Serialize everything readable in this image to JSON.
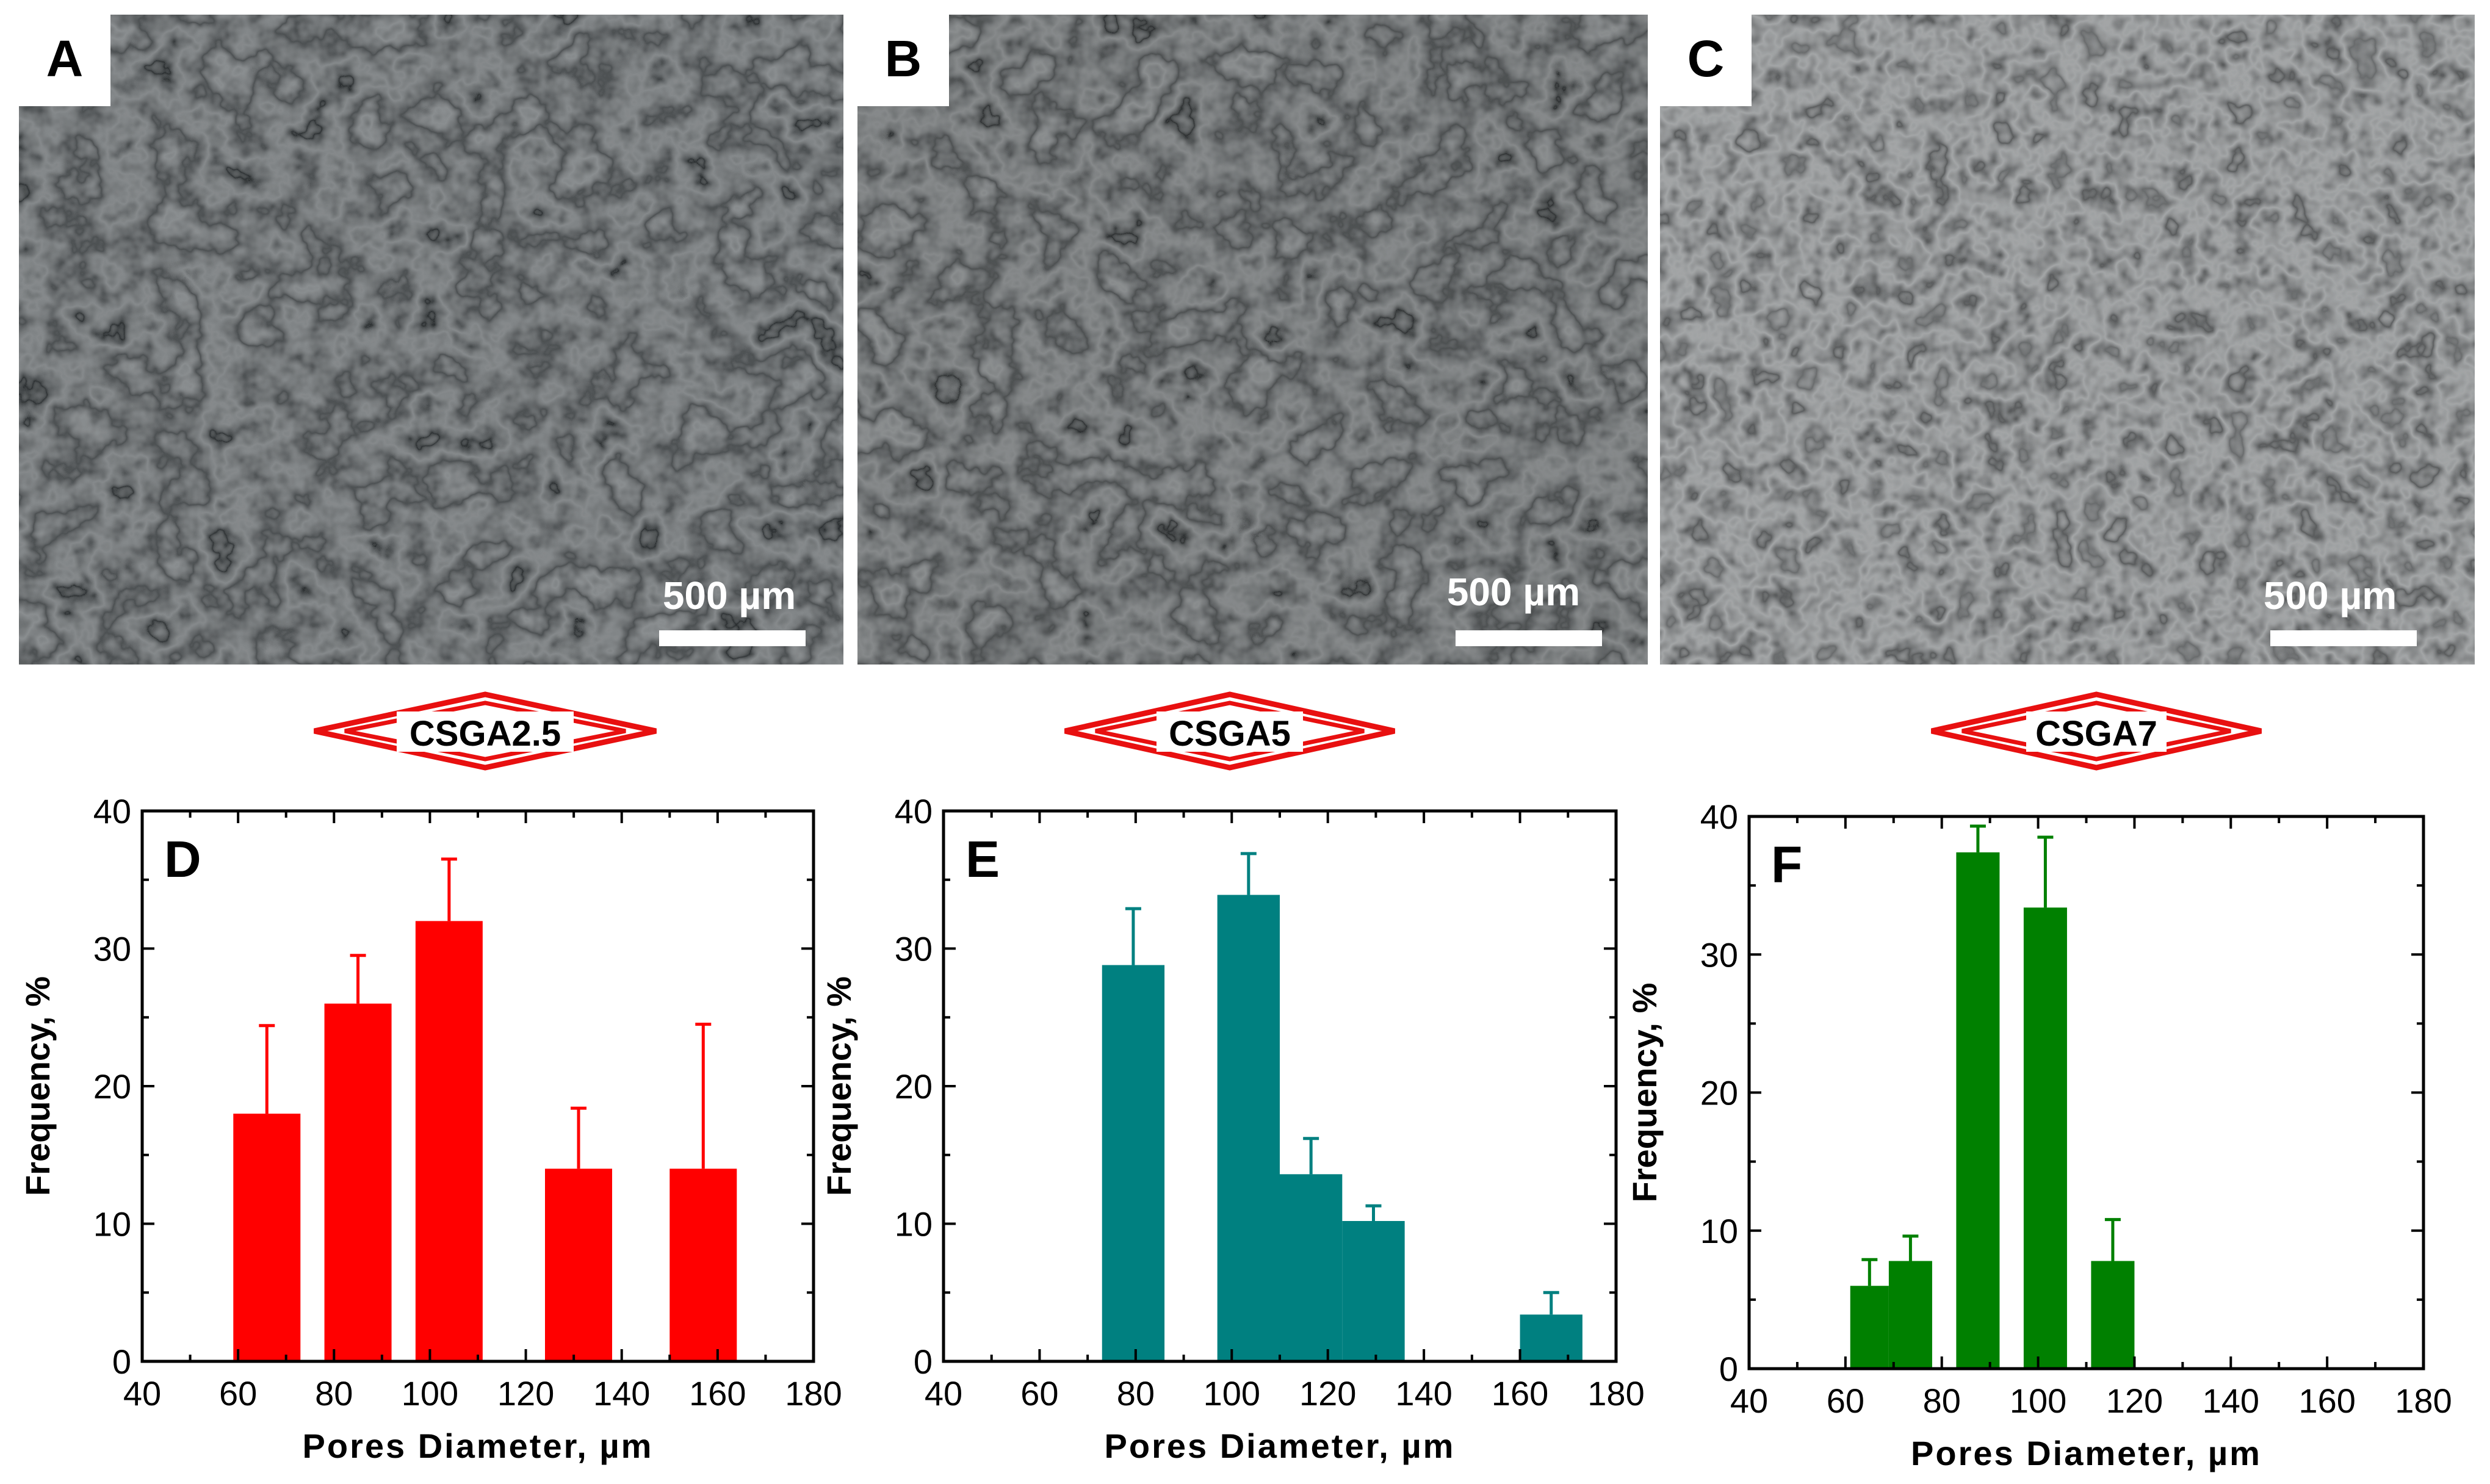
{
  "panels": {
    "A": {
      "letter": "A",
      "scale_bar": "500 µm",
      "color": "#444a4d"
    },
    "B": {
      "letter": "B",
      "scale_bar": "500 µm",
      "color": "#454a4c"
    },
    "C": {
      "letter": "C",
      "scale_bar": "500 µm",
      "color": "#5a5e60"
    }
  },
  "sample_labels": [
    "CSGA2.5",
    "CSGA5",
    "CSGA7"
  ],
  "colors": {
    "red": "#ff0000",
    "teal": "#008080",
    "green": "#008000",
    "diamond": "#e81010",
    "axis": "#000000"
  },
  "chart_data": [
    {
      "type": "bar",
      "panel_letter": "D",
      "sample": "CSGA2.5",
      "xlabel": "Pores Diameter, µm",
      "ylabel": "Frequency, %",
      "xlim": [
        40,
        180
      ],
      "ylim": [
        0,
        40
      ],
      "xticks": [
        40,
        60,
        80,
        100,
        120,
        140,
        160,
        180
      ],
      "yticks": [
        0,
        10,
        20,
        30,
        40
      ],
      "color": "#ff0000",
      "bars": [
        {
          "x0": 59,
          "x1": 73,
          "value": 18,
          "error": 6.4
        },
        {
          "x0": 78,
          "x1": 92,
          "value": 26,
          "error": 3.5
        },
        {
          "x0": 97,
          "x1": 111,
          "value": 32,
          "error": 4.5
        },
        {
          "x0": 124,
          "x1": 138,
          "value": 14,
          "error": 4.4
        },
        {
          "x0": 150,
          "x1": 164,
          "value": 14,
          "error": 10.5
        }
      ]
    },
    {
      "type": "bar",
      "panel_letter": "E",
      "sample": "CSGA5",
      "xlabel": "Pores Diameter, µm",
      "ylabel": "Frequency, %",
      "xlim": [
        40,
        180
      ],
      "ylim": [
        0,
        40
      ],
      "xticks": [
        40,
        60,
        80,
        100,
        120,
        140,
        160,
        180
      ],
      "yticks": [
        0,
        10,
        20,
        30,
        40
      ],
      "color": "#008080",
      "bars": [
        {
          "x0": 73,
          "x1": 86,
          "value": 28.8,
          "error": 4.1
        },
        {
          "x0": 97,
          "x1": 110,
          "value": 33.9,
          "error": 3
        },
        {
          "x0": 110,
          "x1": 123,
          "value": 13.6,
          "error": 2.6
        },
        {
          "x0": 123,
          "x1": 136,
          "value": 10.2,
          "error": 1.1
        },
        {
          "x0": 160,
          "x1": 173,
          "value": 3.4,
          "error": 1.6
        }
      ]
    },
    {
      "type": "bar",
      "panel_letter": "F",
      "sample": "CSGA7",
      "xlabel": "Pores Diameter, µm",
      "ylabel": "Frequency, %",
      "xlim": [
        40,
        180
      ],
      "ylim": [
        0,
        40
      ],
      "xticks": [
        40,
        60,
        80,
        100,
        120,
        140,
        160,
        180
      ],
      "yticks": [
        0,
        10,
        20,
        30,
        40
      ],
      "color": "#008000",
      "bars": [
        {
          "x0": 61,
          "x1": 69,
          "value": 6,
          "error": 1.9
        },
        {
          "x0": 69,
          "x1": 78,
          "value": 7.8,
          "error": 1.8
        },
        {
          "x0": 83,
          "x1": 92,
          "value": 37.4,
          "error": 1.9
        },
        {
          "x0": 97,
          "x1": 106,
          "value": 33.4,
          "error": 5.1
        },
        {
          "x0": 111,
          "x1": 120,
          "value": 7.8,
          "error": 3
        }
      ]
    }
  ]
}
